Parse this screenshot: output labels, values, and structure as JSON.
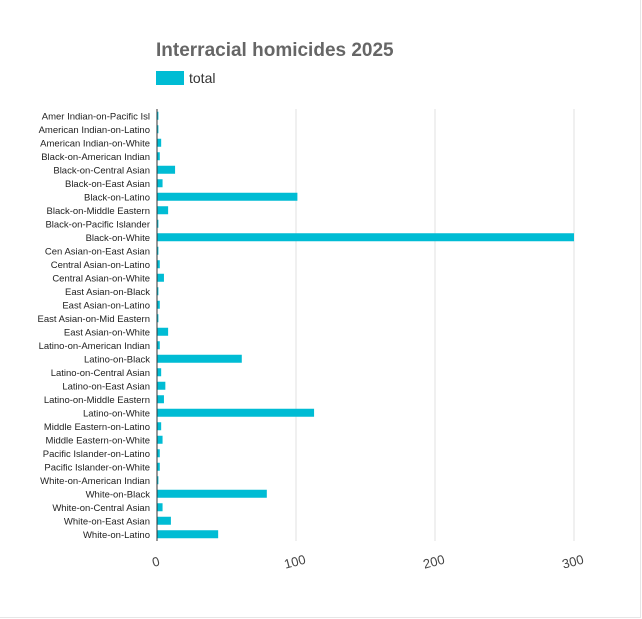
{
  "chart_data": {
    "type": "bar",
    "orientation": "horizontal",
    "title": "Interracial homicides 2025",
    "xlabel": "",
    "ylabel": "",
    "xlim": [
      0,
      300
    ],
    "xticks": [
      0,
      100,
      200,
      300
    ],
    "grid": true,
    "legend_position": "top-left",
    "colors": {
      "bar": "#00bcd4",
      "title": "#666666",
      "grid": "#e0e0e0",
      "axis": "#333333",
      "tick_label": "#444444"
    },
    "categories": [
      "Amer Indian-on-Pacific Isl",
      "American Indian-on-Latino",
      "American Indian-on-White",
      "Black-on-American Indian",
      "Black-on-Central Asian",
      "Black-on-East Asian",
      "Black-on-Latino",
      "Black-on-Middle Eastern",
      "Black-on-Pacific Islander",
      "Black-on-White",
      "Cen Asian-on-East Asian",
      "Central Asian-on-Latino",
      "Central Asian-on-White",
      "East Asian-on-Black",
      "East Asian-on-Latino",
      "East Asian-on-Mid Eastern",
      "East Asian-on-White",
      "Latino-on-American Indian",
      "Latino-on-Black",
      "Latino-on-Central Asian",
      "Latino-on-East Asian",
      "Latino-on-Middle Eastern",
      "Latino-on-White",
      "Middle Eastern-on-Latino",
      "Middle Eastern-on-White",
      "Pacific Islander-on-Latino",
      "Pacific Islander-on-White",
      "White-on-American Indian",
      "White-on-Black",
      "White-on-Central Asian",
      "White-on-East Asian",
      "White-on-Latino"
    ],
    "series": [
      {
        "name": "total",
        "values": [
          1,
          1,
          3,
          2,
          13,
          4,
          101,
          8,
          1,
          300,
          1,
          2,
          5,
          1,
          2,
          1,
          8,
          2,
          61,
          3,
          6,
          5,
          113,
          3,
          4,
          2,
          2,
          1,
          79,
          4,
          10,
          44
        ]
      }
    ]
  }
}
